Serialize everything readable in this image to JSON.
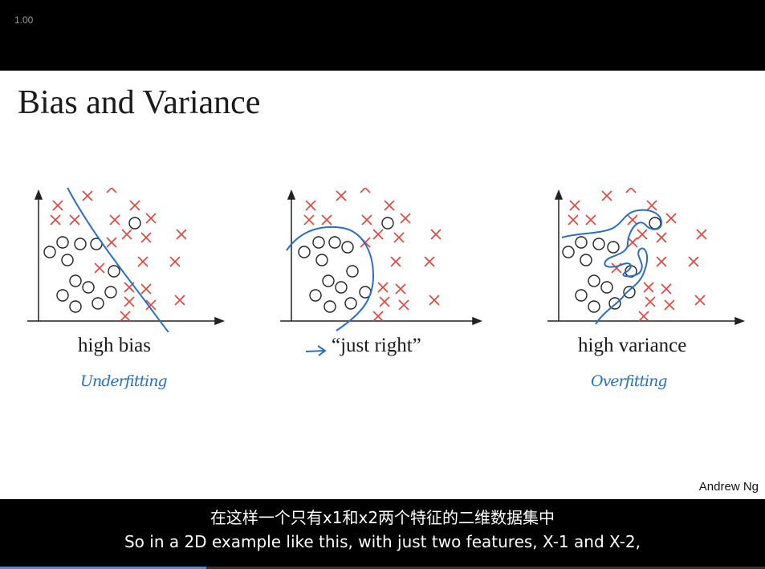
{
  "player": {
    "speed_label": "1.00",
    "progress": 0.27
  },
  "slide": {
    "title": "Bias and Variance",
    "author": "Andrew Ng",
    "panels": [
      {
        "caption": "high bias",
        "handwriting": "Underfitting"
      },
      {
        "caption": "“just right”",
        "handwriting": ""
      },
      {
        "caption": "high variance",
        "handwriting": "Overfitting"
      }
    ],
    "colors": {
      "cross": "#e0453a",
      "circle": "#222222",
      "boundary": "#2a6fbf"
    }
  },
  "subtitles": {
    "chinese": "在这样一个只有x1和x2两个特征的二维数据集中",
    "english": "So in a 2D example like this, with just two features, X-1 and X-2,"
  }
}
